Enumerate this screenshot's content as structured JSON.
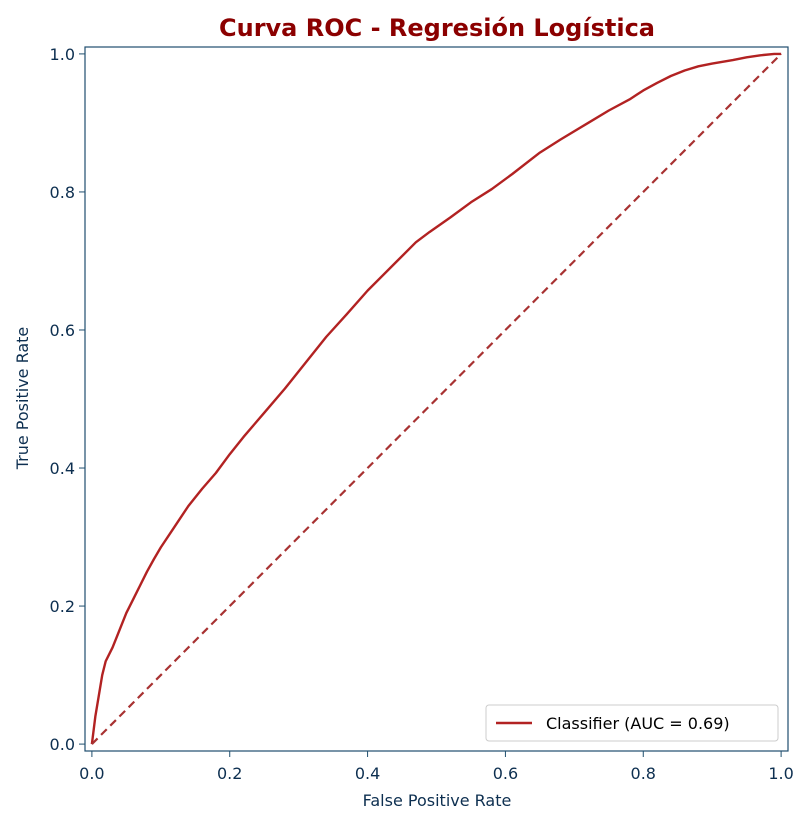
{
  "chart_data": {
    "type": "line",
    "title": "Curva ROC - Regresión Logística",
    "xlabel": "False Positive Rate",
    "ylabel": "True Positive Rate",
    "xlim": [
      -0.01,
      1.01
    ],
    "ylim": [
      -0.01,
      1.01
    ],
    "x_ticks": [
      0.0,
      0.2,
      0.4,
      0.6,
      0.8,
      1.0
    ],
    "x_tick_labels": [
      "0.0",
      "0.2",
      "0.4",
      "0.6",
      "0.8",
      "1.0"
    ],
    "y_ticks": [
      0.0,
      0.2,
      0.4,
      0.6,
      0.8,
      1.0
    ],
    "y_tick_labels": [
      "0.0",
      "0.2",
      "0.4",
      "0.6",
      "0.8",
      "1.0"
    ],
    "grid": false,
    "legend_position": "lower-right",
    "series": [
      {
        "name": "Classifier (AUC = 0.69)",
        "style": "solid",
        "color": "#b22222",
        "x": [
          0.0,
          0.005,
          0.01,
          0.015,
          0.02,
          0.03,
          0.04,
          0.05,
          0.06,
          0.07,
          0.08,
          0.09,
          0.1,
          0.12,
          0.14,
          0.16,
          0.18,
          0.2,
          0.22,
          0.25,
          0.28,
          0.3,
          0.34,
          0.37,
          0.4,
          0.44,
          0.47,
          0.49,
          0.52,
          0.55,
          0.58,
          0.61,
          0.65,
          0.68,
          0.72,
          0.75,
          0.78,
          0.8,
          0.82,
          0.84,
          0.86,
          0.88,
          0.9,
          0.93,
          0.95,
          0.97,
          0.99,
          1.0
        ],
        "y": [
          0.0,
          0.04,
          0.07,
          0.1,
          0.12,
          0.14,
          0.165,
          0.19,
          0.21,
          0.23,
          0.25,
          0.268,
          0.285,
          0.315,
          0.345,
          0.37,
          0.393,
          0.42,
          0.445,
          0.48,
          0.515,
          0.54,
          0.59,
          0.623,
          0.657,
          0.697,
          0.727,
          0.742,
          0.763,
          0.785,
          0.804,
          0.826,
          0.857,
          0.876,
          0.9,
          0.918,
          0.934,
          0.947,
          0.958,
          0.968,
          0.976,
          0.982,
          0.986,
          0.991,
          0.995,
          0.998,
          1.0,
          1.0
        ]
      },
      {
        "name": "",
        "style": "dashed",
        "color": "#a83232",
        "x": [
          0.0,
          1.0
        ],
        "y": [
          0.0,
          1.0
        ]
      }
    ]
  },
  "colors": {
    "title": "#8b0000",
    "axis_text": "#0d2f50",
    "spine": "#1f4e6e",
    "curve": "#b22222",
    "diagonal": "#a83232"
  }
}
